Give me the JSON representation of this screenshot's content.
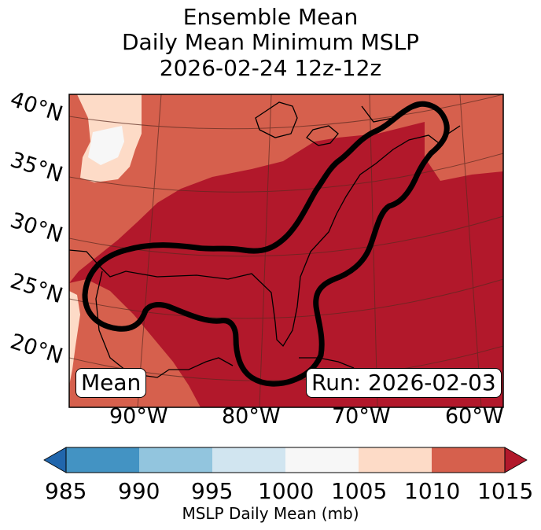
{
  "title": {
    "line1": "Ensemble Mean",
    "line2": "Daily Mean Minimum MSLP",
    "line3": "2026-02-24 12z-12z"
  },
  "map": {
    "lat_labels": [
      "40°N",
      "35°N",
      "30°N",
      "25°N",
      "20°N"
    ],
    "lon_labels": [
      "90°W",
      "80°W",
      "70°W",
      "60°W"
    ],
    "mean_label": "Mean",
    "run_label": "Run: 2026-02-03",
    "colors": {
      "1000_1005": "#f7f7f7",
      "1005_1010": "#fddbc7",
      "1010_1015": "#d6604d",
      "over_1015": "#b2182b",
      "contour": "#000000"
    }
  },
  "colorbar": {
    "title": "MSLP Daily Mean (mb)",
    "ticks": [
      "985",
      "990",
      "995",
      "1000",
      "1005",
      "1010",
      "1015"
    ],
    "colors": [
      "#2166ac",
      "#4393c3",
      "#92c5de",
      "#d1e5f0",
      "#f7f7f7",
      "#fddbc7",
      "#d6604d",
      "#b2182b"
    ]
  }
}
